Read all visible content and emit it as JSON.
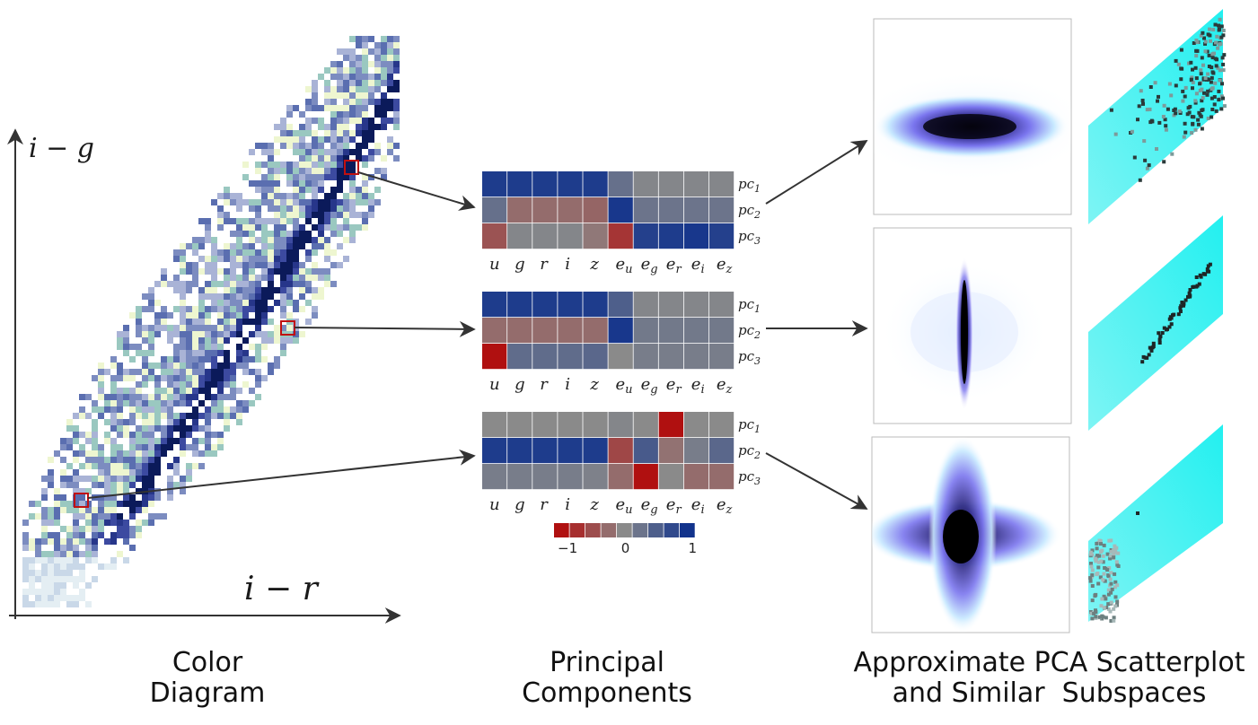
{
  "axes": {
    "y_label": "i − g",
    "x_label": "i − r"
  },
  "captions": {
    "left": [
      "Color",
      "Diagram"
    ],
    "middle": [
      "Principal",
      "Components"
    ],
    "right": [
      "Approximate PCA Scatterplot",
      "and Similar  Subspaces"
    ]
  },
  "pca": {
    "columns": [
      "u",
      "g",
      "r",
      "i",
      "z",
      "e_u",
      "e_g",
      "e_r",
      "e_i",
      "e_z"
    ],
    "column_display": [
      {
        "base": "u",
        "sub": ""
      },
      {
        "base": "g",
        "sub": ""
      },
      {
        "base": "r",
        "sub": ""
      },
      {
        "base": "i",
        "sub": ""
      },
      {
        "base": "z",
        "sub": ""
      },
      {
        "base": "e",
        "sub": "u"
      },
      {
        "base": "e",
        "sub": "g"
      },
      {
        "base": "e",
        "sub": "r"
      },
      {
        "base": "e",
        "sub": "i"
      },
      {
        "base": "e",
        "sub": "z"
      }
    ],
    "rows": [
      {
        "base": "pc",
        "sub": "1"
      },
      {
        "base": "pc",
        "sub": "2"
      },
      {
        "base": "pc",
        "sub": "3"
      }
    ],
    "matrices": [
      [
        [
          0.9,
          0.9,
          0.9,
          0.9,
          0.9,
          0.3,
          0.05,
          0.05,
          0.05,
          0.05
        ],
        [
          0.3,
          -0.25,
          -0.25,
          -0.25,
          -0.3,
          0.95,
          0.25,
          0.25,
          0.25,
          0.25
        ],
        [
          -0.45,
          0.05,
          0.05,
          0.05,
          -0.15,
          -0.7,
          0.85,
          0.9,
          0.95,
          0.85
        ]
      ],
      [
        [
          0.9,
          0.9,
          0.9,
          0.9,
          0.9,
          0.5,
          0.05,
          0.05,
          0.05,
          0.05
        ],
        [
          -0.25,
          -0.25,
          -0.25,
          -0.25,
          -0.25,
          0.95,
          0.2,
          0.2,
          0.2,
          0.2
        ],
        [
          -1.0,
          0.35,
          0.35,
          0.35,
          0.4,
          0.0,
          0.15,
          0.15,
          0.15,
          0.15
        ]
      ],
      [
        [
          0.0,
          0.0,
          0.0,
          0.0,
          0.0,
          0.05,
          0.0,
          -1.0,
          0.0,
          0.0
        ],
        [
          0.9,
          0.9,
          0.9,
          0.9,
          0.9,
          -0.55,
          0.55,
          -0.2,
          0.15,
          0.4
        ],
        [
          0.15,
          0.15,
          0.15,
          0.15,
          0.1,
          -0.25,
          -1.0,
          0.0,
          -0.25,
          -0.25
        ]
      ]
    ],
    "colorbar": {
      "ticks": [
        "−1",
        "0",
        "1"
      ],
      "steps": [
        -1.0,
        -0.75,
        -0.5,
        -0.25,
        0.0,
        0.25,
        0.5,
        0.75,
        1.0
      ]
    }
  },
  "colors": {
    "neg": "#b01010",
    "zero": "#8a8a8a",
    "pos": "#12338c",
    "highlight_box": "#c01010",
    "arrow": "#333333",
    "subspace": "#28f0f0",
    "blob": "#5a55e6"
  },
  "scatterplots": [
    {
      "name": "horizontal-ellipse"
    },
    {
      "name": "vertical-needle"
    },
    {
      "name": "cross-shape"
    }
  ],
  "subspaces": [
    {
      "name": "top-dense"
    },
    {
      "name": "middle-line"
    },
    {
      "name": "bottom-sparse"
    }
  ]
}
